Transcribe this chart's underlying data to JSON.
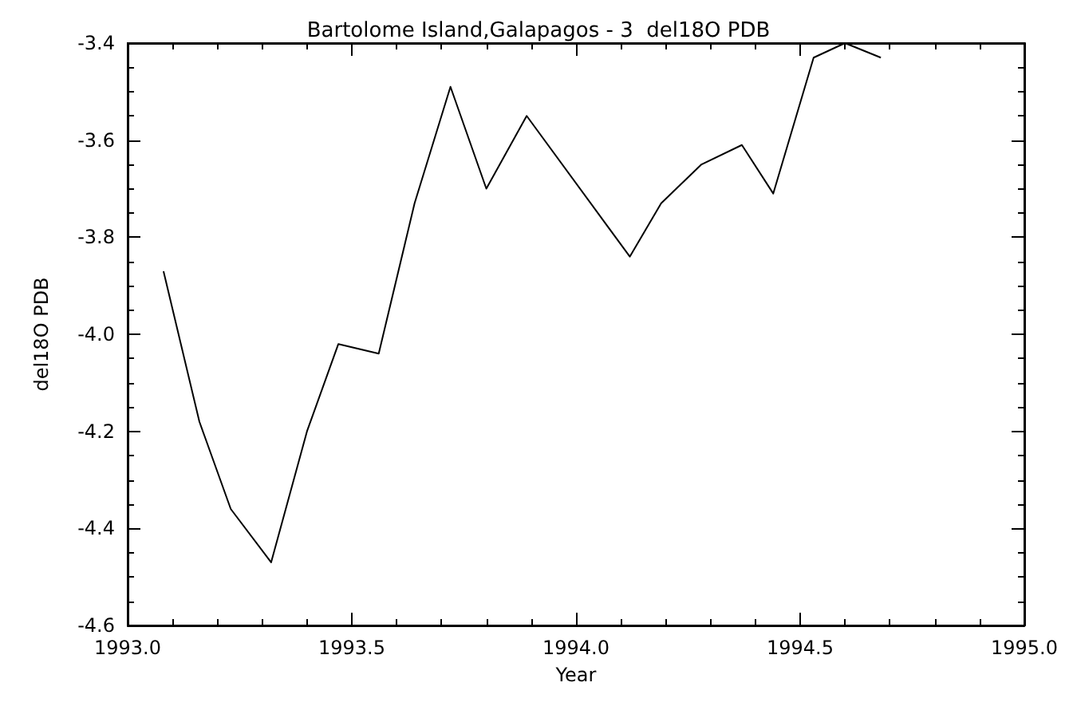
{
  "chart_data": {
    "type": "line",
    "title": "Bartolome Island,Galapagos - 3  del18O PDB",
    "xlabel": "Year",
    "ylabel": "del18O PDB",
    "x": [
      1993.08,
      1993.16,
      1993.23,
      1993.32,
      1993.4,
      1993.47,
      1993.56,
      1993.64,
      1993.72,
      1993.8,
      1993.89,
      1994.12,
      1994.19,
      1994.28,
      1994.37,
      1994.44,
      1994.53,
      1994.6,
      1994.68
    ],
    "series": [
      {
        "color": "#000000",
        "values": [
          -3.87,
          -4.18,
          -4.36,
          -4.47,
          -4.2,
          -4.02,
          -4.04,
          -3.73,
          -3.49,
          -3.7,
          -3.55,
          -3.84,
          -3.73,
          -3.65,
          -3.61,
          -3.71,
          -3.43,
          -3.4,
          -3.43
        ]
      }
    ],
    "xlim": [
      1993,
      1995
    ],
    "xticks": [
      {
        "value": 1993,
        "label": "1993.0"
      },
      {
        "value": 1993.5,
        "label": "1993.5"
      },
      {
        "value": 1994,
        "label": "1994.0"
      },
      {
        "value": 1994.5,
        "label": "1994.5"
      },
      {
        "value": 1995,
        "label": "1995.0"
      }
    ],
    "ylim": [
      -4.6,
      -3.4
    ],
    "yticks": [
      {
        "value": -4.6,
        "label": "-4.6"
      },
      {
        "value": -4.4,
        "label": "-4.4"
      },
      {
        "value": -4.2,
        "label": "-4.2"
      },
      {
        "value": -4,
        "label": "-4.0"
      },
      {
        "value": -3.8,
        "label": "-3.8"
      },
      {
        "value": -3.6,
        "label": "-3.6"
      },
      {
        "value": -3.4,
        "label": "-3.4"
      }
    ],
    "grid": false,
    "marker": "none",
    "line_style": "solid"
  }
}
